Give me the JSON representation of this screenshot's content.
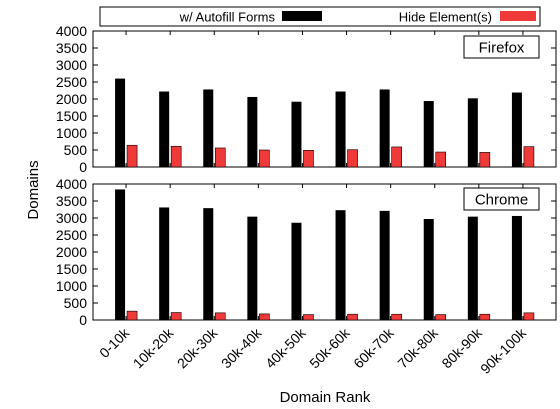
{
  "chart_data": [
    {
      "type": "bar",
      "panel": "Firefox",
      "categories": [
        "0-10k",
        "10k-20k",
        "20k-30k",
        "30k-40k",
        "40k-50k",
        "50k-60k",
        "60k-70k",
        "70k-80k",
        "80k-90k",
        "90k-100k"
      ],
      "series": [
        {
          "name": "w/ Autofill Forms",
          "color": "#000000",
          "values": [
            2600,
            2220,
            2280,
            2060,
            1920,
            2220,
            2280,
            1940,
            2020,
            2190
          ]
        },
        {
          "name": "Hide Element(s)",
          "color": "#ef3a3a",
          "values": [
            640,
            610,
            560,
            500,
            490,
            510,
            590,
            440,
            430,
            600
          ]
        }
      ],
      "ylim": [
        0,
        4000
      ],
      "yticks": [
        "0",
        "500",
        "1000",
        "1500",
        "2000",
        "2500",
        "3000",
        "3500",
        "4000"
      ]
    },
    {
      "type": "bar",
      "panel": "Chrome",
      "categories": [
        "0-10k",
        "10k-20k",
        "20k-30k",
        "30k-40k",
        "40k-50k",
        "50k-60k",
        "60k-70k",
        "70k-80k",
        "80k-90k",
        "90k-100k"
      ],
      "series": [
        {
          "name": "w/ Autofill Forms",
          "color": "#000000",
          "values": [
            3840,
            3310,
            3290,
            3040,
            2860,
            3230,
            3210,
            2970,
            3040,
            3060
          ]
        },
        {
          "name": "Hide Element(s)",
          "color": "#ef3a3a",
          "values": [
            260,
            220,
            210,
            180,
            160,
            170,
            170,
            160,
            170,
            210
          ]
        }
      ],
      "ylim": [
        0,
        4000
      ],
      "yticks": [
        "0",
        "500",
        "1000",
        "1500",
        "2000",
        "2500",
        "3000",
        "3500",
        "4000"
      ]
    }
  ],
  "legend": {
    "series1": "w/ Autofill Forms",
    "series2": "Hide Element(s)"
  },
  "panels": {
    "top_label": "Firefox",
    "bottom_label": "Chrome"
  },
  "axes": {
    "xlabel": "Domain Rank",
    "ylabel": "Domains"
  }
}
